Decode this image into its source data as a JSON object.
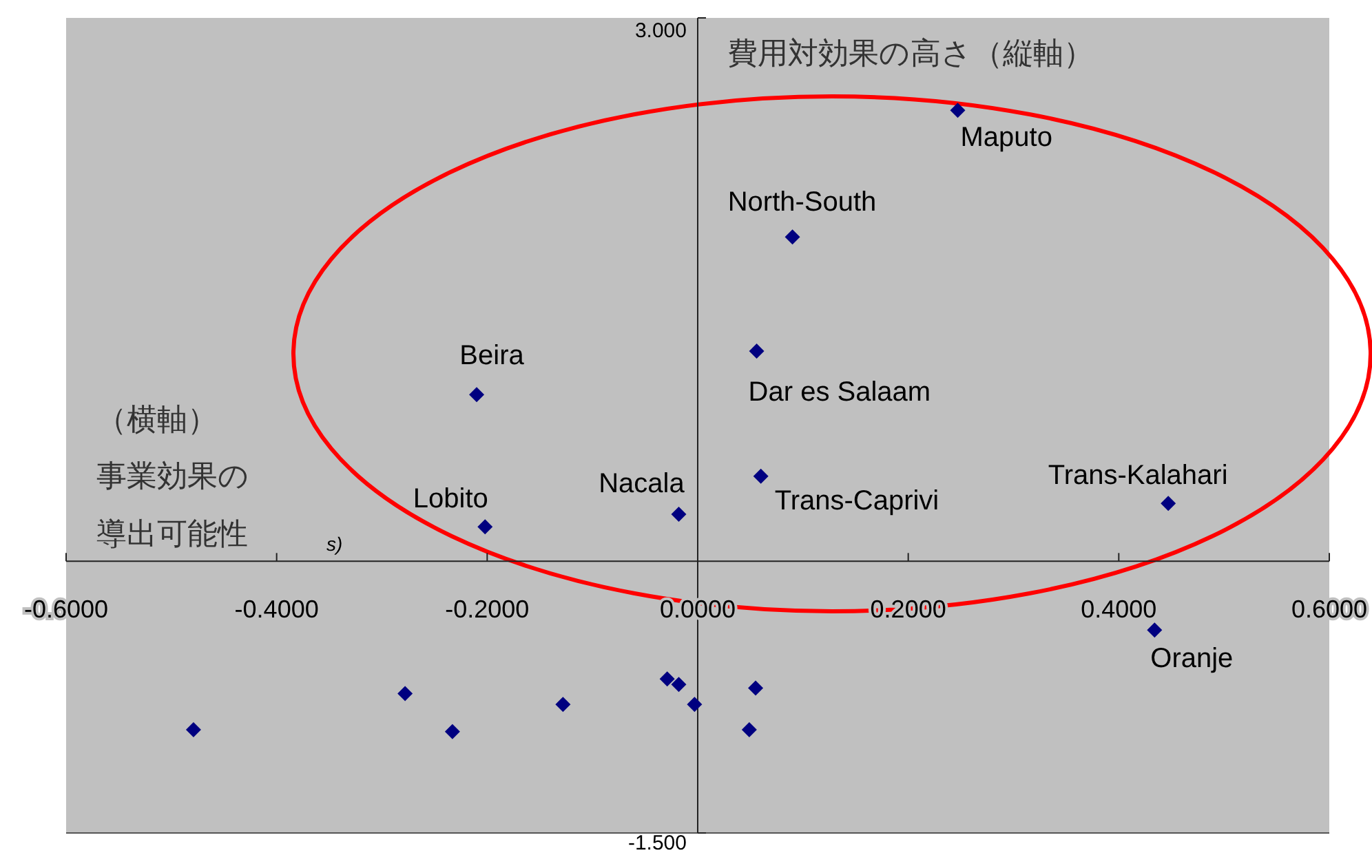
{
  "chart_data": {
    "type": "scatter",
    "marker": "diamond",
    "color": "#000080",
    "x": [
      0.247,
      0.09,
      0.056,
      -0.21,
      -0.202,
      -0.018,
      0.06,
      0.447,
      0.434,
      -0.479,
      -0.278,
      -0.233,
      -0.128,
      -0.029,
      -0.018,
      -0.003,
      0.055,
      0.049
    ],
    "values": [
      2.49,
      1.79,
      1.16,
      0.92,
      0.19,
      0.26,
      0.47,
      0.32,
      -0.38,
      -0.93,
      -0.73,
      -0.94,
      -0.79,
      -0.65,
      -0.68,
      -0.79,
      -0.7,
      -0.93
    ],
    "value_labels": [
      "Maputo",
      "North-South",
      "Dar es Salaam",
      "Beira",
      "Lobito",
      "Nacala",
      "Trans-Caprivi",
      "Trans-Kalahari",
      "Oranje",
      null,
      null,
      null,
      null,
      null,
      null,
      null,
      null,
      null
    ],
    "xlim": [
      -0.6,
      0.6
    ],
    "ylim": [
      -1.5,
      3.0
    ],
    "xticks": [
      {
        "value": -0.6,
        "label": "-0.6000"
      },
      {
        "value": -0.4,
        "label": "-0.4000"
      },
      {
        "value": -0.2,
        "label": "-0.2000"
      },
      {
        "value": 0,
        "label": "0.0000"
      },
      {
        "value": 0.2,
        "label": "0.2000"
      },
      {
        "value": 0.4,
        "label": "0.4000"
      },
      {
        "value": 0.6,
        "label": "0.6000"
      }
    ],
    "yticks": [
      {
        "value": 3.0,
        "label": "3.000"
      },
      {
        "value": -1.5,
        "label": "-1.500"
      }
    ],
    "annotations": [
      "費用対効果の高さ（縦軸）",
      "（横軸）",
      "事業効果の",
      "導出可能性",
      "s)"
    ]
  }
}
